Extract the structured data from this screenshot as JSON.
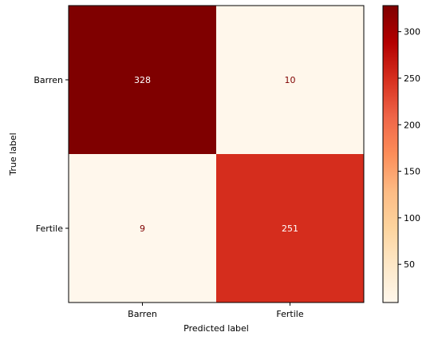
{
  "chart_data": {
    "type": "heatmap",
    "xlabel": "Predicted label",
    "ylabel": "True label",
    "x_categories": [
      "Barren",
      "Fertile"
    ],
    "y_categories": [
      "Barren",
      "Fertile"
    ],
    "values": [
      [
        328,
        10
      ],
      [
        9,
        251
      ]
    ],
    "value_labels": [
      [
        "328",
        "10"
      ],
      [
        "9",
        "251"
      ]
    ],
    "colormap": "OrRd",
    "colorbar": {
      "range": [
        9,
        328
      ],
      "ticks": [
        50,
        100,
        150,
        200,
        250,
        300
      ],
      "tick_labels": [
        "50",
        "100",
        "150",
        "200",
        "250",
        "300"
      ]
    },
    "text_colors": {
      "on_dark": "#ffffff",
      "on_light": "#7f0000"
    }
  }
}
